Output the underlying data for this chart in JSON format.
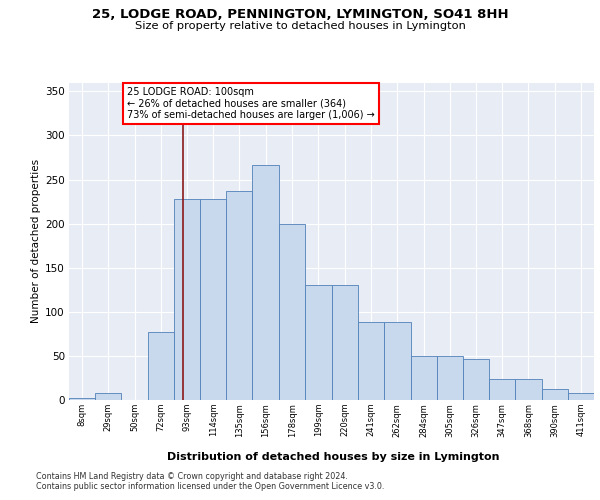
{
  "title": "25, LODGE ROAD, PENNINGTON, LYMINGTON, SO41 8HH",
  "subtitle": "Size of property relative to detached houses in Lymington",
  "xlabel": "Distribution of detached houses by size in Lymington",
  "ylabel": "Number of detached properties",
  "footnote1": "Contains HM Land Registry data © Crown copyright and database right 2024.",
  "footnote2": "Contains public sector information licensed under the Open Government Licence v3.0.",
  "annotation_line1": "25 LODGE ROAD: 100sqm",
  "annotation_line2": "← 26% of detached houses are smaller (364)",
  "annotation_line3": "73% of semi-detached houses are larger (1,006) →",
  "bar_color": "#c9d9ed",
  "bar_edge_color": "#5080b8",
  "bg_color": "#e8edf5",
  "red_line_x": 100,
  "bin_edges": [
    8,
    29,
    50,
    72,
    93,
    114,
    135,
    156,
    178,
    199,
    220,
    241,
    262,
    284,
    305,
    326,
    347,
    368,
    390,
    411,
    432
  ],
  "bar_heights": [
    2,
    8,
    0,
    77,
    228,
    228,
    237,
    267,
    200,
    130,
    130,
    88,
    88,
    50,
    50,
    46,
    24,
    24,
    12,
    8
  ],
  "ylim": [
    0,
    360
  ],
  "yticks": [
    0,
    50,
    100,
    150,
    200,
    250,
    300,
    350
  ],
  "grid_color": "#c8d0dc"
}
